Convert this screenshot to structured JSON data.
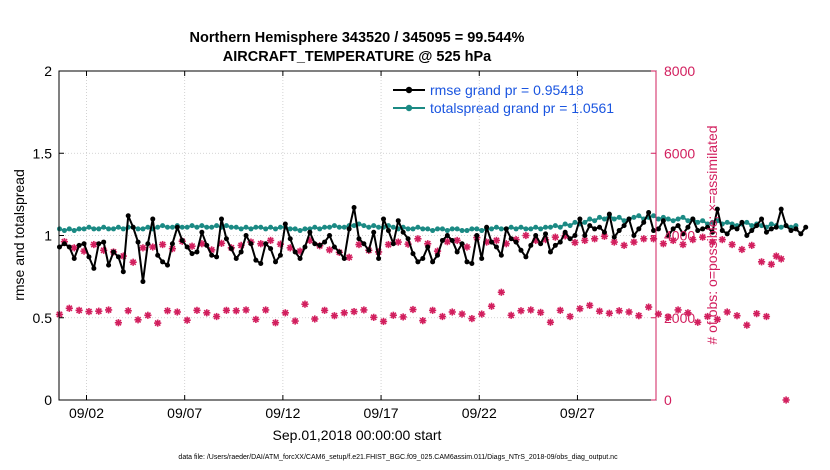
{
  "chart_data": {
    "type": "line",
    "title_line1": "Northern Hemisphere 343520 / 345095 = 99.544%",
    "title_line2": "AIRCRAFT_TEMPERATURE @ 525 hPa",
    "xlabel": "Sep.01,2018 00:00:00 start",
    "ylabel_left": "rmse and totalspread",
    "ylabel_right": "# of obs: o=possible; ×=assimilated",
    "footnote": "data file: /Users/raeder/DAI/ATM_forcXX/CAM6_setup/f.e21.FHIST_BGC.f09_025.CAM6assim.011/Diags_NTrS_2018-09/obs_diag_output.nc",
    "xlim": [
      0.6,
      31.0
    ],
    "ylim_left": [
      0,
      2
    ],
    "ylim_right": [
      0,
      8000
    ],
    "x_ticks": [
      {
        "x": 2,
        "label": "09/02"
      },
      {
        "x": 7,
        "label": "09/07"
      },
      {
        "x": 12,
        "label": "09/12"
      },
      {
        "x": 17,
        "label": "09/17"
      },
      {
        "x": 22,
        "label": "09/22"
      },
      {
        "x": 27,
        "label": "09/27"
      }
    ],
    "y_ticks_left": [
      {
        "v": 0,
        "label": "0"
      },
      {
        "v": 0.5,
        "label": "0.5"
      },
      {
        "v": 1,
        "label": "1"
      },
      {
        "v": 1.5,
        "label": "1.5"
      },
      {
        "v": 2,
        "label": "2"
      }
    ],
    "y_ticks_right": [
      {
        "v": 0,
        "label": "0"
      },
      {
        "v": 2000,
        "label": "2000"
      },
      {
        "v": 4000,
        "label": "4000"
      },
      {
        "v": 6000,
        "label": "6000"
      },
      {
        "v": 8000,
        "label": "8000"
      }
    ],
    "x_start": 0.625,
    "x_step": 0.25,
    "series": [
      {
        "name": "rmse",
        "legend": "rmse grand pr = 0.95418",
        "color": "#000000",
        "values": [
          0.93,
          0.95,
          0.93,
          0.86,
          0.94,
          0.95,
          0.87,
          0.8,
          0.95,
          0.96,
          0.82,
          0.9,
          0.87,
          0.78,
          1.12,
          1.05,
          0.96,
          0.72,
          0.95,
          1.1,
          0.88,
          0.84,
          0.82,
          0.95,
          1.05,
          0.97,
          0.93,
          0.89,
          0.9,
          1.02,
          0.94,
          0.88,
          0.87,
          1.1,
          0.98,
          0.92,
          0.86,
          0.9,
          1.0,
          0.95,
          0.85,
          0.83,
          0.95,
          0.92,
          0.84,
          0.88,
          1.07,
          0.98,
          0.9,
          0.86,
          0.93,
          1.02,
          0.95,
          0.94,
          0.96,
          1.0,
          0.93,
          0.9,
          0.86,
          1.04,
          1.17,
          0.98,
          0.95,
          0.91,
          1.02,
          0.86,
          1.1,
          1.03,
          0.95,
          1.09,
          1.02,
          0.98,
          0.89,
          0.84,
          0.86,
          0.93,
          0.84,
          0.88,
          0.97,
          1.0,
          0.97,
          0.9,
          0.95,
          0.84,
          0.83,
          1.0,
          0.86,
          1.05,
          0.96,
          0.93,
          0.88,
          1.04,
          0.98,
          0.96,
          0.91,
          0.87,
          0.94,
          1.0,
          0.95,
          1.01,
          0.9,
          0.94,
          0.96,
          1.02,
          0.98,
          1.0,
          1.1,
          1.0,
          1.06,
          1.04,
          1.05,
          1.02,
          1.13,
          0.99,
          1.03,
          1.06,
          1.1,
          1.0,
          1.04,
          1.08,
          1.14,
          1.03,
          1.04,
          1.09,
          1.0,
          1.04,
          1.06,
          1.01,
          1.05,
          1.1,
          1.03,
          1.04,
          1.05,
          1.02,
          1.16,
          1.03,
          1.01,
          1.05,
          1.04,
          1.08,
          1.0,
          1.03,
          1.06,
          1.1,
          1.02,
          1.04,
          1.05,
          1.16,
          1.06,
          1.03,
          1.04,
          1.01,
          1.05
        ]
      },
      {
        "name": "totalspread",
        "legend": "totalspread grand pr = 1.0561",
        "color": "#1b8a84",
        "values": [
          1.04,
          1.03,
          1.04,
          1.03,
          1.04,
          1.04,
          1.05,
          1.04,
          1.04,
          1.05,
          1.04,
          1.04,
          1.05,
          1.04,
          1.05,
          1.05,
          1.04,
          1.04,
          1.05,
          1.04,
          1.05,
          1.06,
          1.05,
          1.05,
          1.06,
          1.05,
          1.05,
          1.06,
          1.05,
          1.06,
          1.05,
          1.05,
          1.06,
          1.05,
          1.06,
          1.05,
          1.05,
          1.04,
          1.05,
          1.04,
          1.05,
          1.05,
          1.04,
          1.05,
          1.04,
          1.05,
          1.05,
          1.04,
          1.04,
          1.03,
          1.04,
          1.04,
          1.05,
          1.04,
          1.05,
          1.05,
          1.06,
          1.05,
          1.05,
          1.06,
          1.06,
          1.07,
          1.06,
          1.05,
          1.06,
          1.05,
          1.05,
          1.06,
          1.05,
          1.04,
          1.05,
          1.04,
          1.04,
          1.05,
          1.04,
          1.04,
          1.03,
          1.04,
          1.04,
          1.03,
          1.04,
          1.04,
          1.03,
          1.03,
          1.04,
          1.04,
          1.03,
          1.04,
          1.04,
          1.05,
          1.04,
          1.04,
          1.05,
          1.04,
          1.05,
          1.04,
          1.04,
          1.05,
          1.04,
          1.05,
          1.05,
          1.06,
          1.05,
          1.07,
          1.06,
          1.08,
          1.07,
          1.08,
          1.1,
          1.09,
          1.11,
          1.1,
          1.12,
          1.1,
          1.11,
          1.09,
          1.1,
          1.11,
          1.12,
          1.1,
          1.11,
          1.12,
          1.1,
          1.11,
          1.1,
          1.09,
          1.1,
          1.11,
          1.09,
          1.1,
          1.08,
          1.09,
          1.07,
          1.08,
          1.09,
          1.07,
          1.08,
          1.07,
          1.06,
          1.07,
          1.08,
          1.06,
          1.07,
          1.06,
          1.05,
          1.07,
          1.06,
          1.05,
          1.06,
          1.05,
          1.06
        ]
      }
    ],
    "obs_color": "#d21f5e",
    "obs_counts": [
      2080,
      3850,
      2230,
      3700,
      2180,
      3620,
      2150,
      3780,
      2160,
      3640,
      2190,
      3600,
      1880,
      3500,
      2170,
      3350,
      1950,
      3700,
      2060,
      3720,
      1870,
      3780,
      2170,
      3680,
      2140,
      3860,
      1940,
      3740,
      2180,
      3800,
      2120,
      3650,
      2030,
      3810,
      2180,
      3700,
      2170,
      3760,
      2190,
      3840,
      1960,
      3800,
      2190,
      3880,
      1880,
      3790,
      2120,
      3700,
      1920,
      3620,
      2330,
      3880,
      1970,
      3750,
      2180,
      3650,
      2050,
      3590,
      2120,
      3470,
      2150,
      3780,
      2190,
      3640,
      2010,
      3600,
      1910,
      3780,
      2060,
      3840,
      2020,
      3790,
      2200,
      3920,
      1930,
      3800,
      2180,
      3620,
      2030,
      3850,
      2140,
      3880,
      2090,
      3720,
      1980,
      3950,
      2090,
      3840,
      2280,
      3880,
      2620,
      3800,
      2060,
      3900,
      2170,
      4000,
      2190,
      3880,
      2130,
      3900,
      1890,
      3960,
      2180,
      3990,
      2030,
      3830,
      2220,
      3880,
      2300,
      3920,
      2160,
      3980,
      2110,
      3840,
      2170,
      3760,
      2140,
      3840,
      2050,
      3920,
      2260,
      3920,
      2090,
      3800,
      2010,
      3880,
      2190,
      3780,
      2120,
      3900,
      1890,
      3960,
      2030,
      3840,
      1960,
      3900,
      2140,
      3780,
      2050,
      3660,
      1820,
      3760,
      2100,
      3360,
      2030,
      3300,
      3500,
      3430,
      0
    ]
  }
}
